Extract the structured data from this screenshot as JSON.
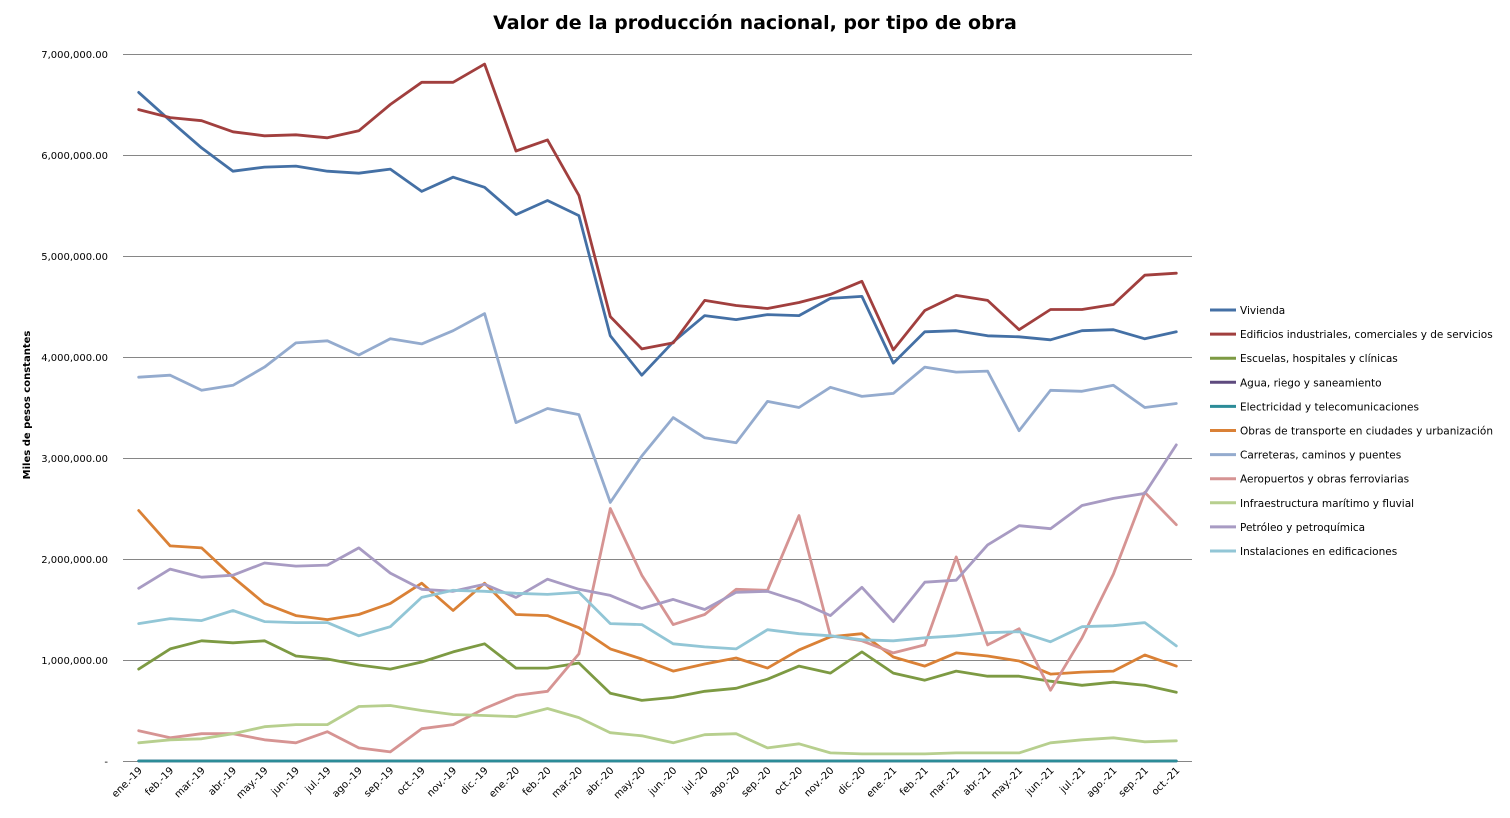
{
  "chart_data": {
    "type": "line",
    "title": "Valor de la producción nacional, por tipo de obra",
    "xlabel": "",
    "ylabel": "Miles de pesos constantes",
    "ylim": [
      0,
      7000000
    ],
    "yticks": [
      0,
      1000000,
      2000000,
      3000000,
      4000000,
      5000000,
      6000000,
      7000000
    ],
    "ytick_labels": [
      "-",
      "1,000,000.00",
      "2,000,000.00",
      "3,000,000.00",
      "4,000,000.00",
      "5,000,000.00",
      "6,000,000.00",
      "7,000,000.00"
    ],
    "grid": true,
    "legend_position": "right",
    "categories": [
      "ene.-19",
      "feb.-19",
      "mar.-19",
      "abr.-19",
      "may.-19",
      "jun.-19",
      "jul.-19",
      "ago.-19",
      "sep.-19",
      "oct.-19",
      "nov.-19",
      "dic.-19",
      "ene.-20",
      "feb.-20",
      "mar.-20",
      "abr.-20",
      "may.-20",
      "jun.-20",
      "jul.-20",
      "ago.-20",
      "sep.-20",
      "oct.-20",
      "nov.-20",
      "dic.-20",
      "ene.-21",
      "feb.-21",
      "mar.-21",
      "abr.-21",
      "may.-21",
      "jun.-21",
      "jul.-21",
      "ago.-21",
      "sep.-21",
      "oct.-21"
    ],
    "series": [
      {
        "name": "Vivienda",
        "color": "#4470A5",
        "values": [
          6620000,
          6340000,
          6070000,
          5840000,
          5880000,
          5890000,
          5840000,
          5820000,
          5860000,
          5640000,
          5780000,
          5680000,
          5410000,
          5550000,
          5400000,
          4210000,
          3820000,
          4150000,
          4410000,
          4370000,
          4420000,
          4410000,
          4580000,
          4600000,
          3940000,
          4250000,
          4260000,
          4210000,
          4200000,
          4170000,
          4260000,
          4270000,
          4180000,
          4250000
        ]
      },
      {
        "name": "Edificios industriales, comerciales y de servicios",
        "color": "#A13F3E",
        "values": [
          6450000,
          6370000,
          6340000,
          6230000,
          6190000,
          6200000,
          6170000,
          6240000,
          6500000,
          6720000,
          6720000,
          6900000,
          6040000,
          6150000,
          5600000,
          4400000,
          4080000,
          4140000,
          4560000,
          4510000,
          4480000,
          4540000,
          4620000,
          4750000,
          4070000,
          4460000,
          4610000,
          4560000,
          4270000,
          4470000,
          4470000,
          4520000,
          4810000,
          4830000
        ]
      },
      {
        "name": "Escuelas, hospitales y clínicas",
        "color": "#7D9A43",
        "values": [
          910000,
          1110000,
          1190000,
          1170000,
          1190000,
          1040000,
          1010000,
          950000,
          910000,
          980000,
          1080000,
          1160000,
          920000,
          920000,
          970000,
          670000,
          600000,
          630000,
          690000,
          720000,
          810000,
          940000,
          870000,
          1080000,
          870000,
          800000,
          890000,
          840000,
          840000,
          790000,
          750000,
          780000,
          750000,
          680000
        ]
      },
      {
        "name": "Agua, riego y saneamiento",
        "color": "#5E4A7E",
        "values": [
          0,
          0,
          0,
          0,
          0,
          0,
          0,
          0,
          0,
          0,
          0,
          0,
          0,
          0,
          0,
          0,
          0,
          0,
          0,
          0,
          0,
          0,
          0,
          0,
          0,
          0,
          0,
          0,
          0,
          0,
          0,
          0,
          0,
          0
        ]
      },
      {
        "name": "Electricidad y telecomunicaciones",
        "color": "#2C8C98",
        "values": [
          0,
          0,
          0,
          0,
          0,
          0,
          0,
          0,
          0,
          0,
          0,
          0,
          0,
          0,
          0,
          0,
          0,
          0,
          0,
          0,
          0,
          0,
          0,
          0,
          0,
          0,
          0,
          0,
          0,
          0,
          0,
          0,
          0,
          0
        ]
      },
      {
        "name": "Obras de transporte en ciudades y urbanización",
        "color": "#DA8136",
        "values": [
          2480000,
          2130000,
          2110000,
          1820000,
          1560000,
          1440000,
          1400000,
          1450000,
          1560000,
          1760000,
          1490000,
          1760000,
          1450000,
          1440000,
          1320000,
          1110000,
          1010000,
          890000,
          960000,
          1020000,
          920000,
          1100000,
          1230000,
          1260000,
          1030000,
          940000,
          1070000,
          1040000,
          990000,
          860000,
          880000,
          890000,
          1050000,
          940000
        ]
      },
      {
        "name": "Carreteras, caminos y puentes",
        "color": "#94ABCE",
        "values": [
          3800000,
          3820000,
          3670000,
          3720000,
          3900000,
          4140000,
          4160000,
          4020000,
          4180000,
          4130000,
          4260000,
          4430000,
          3350000,
          3490000,
          3430000,
          2560000,
          3020000,
          3400000,
          3200000,
          3150000,
          3560000,
          3500000,
          3700000,
          3610000,
          3640000,
          3900000,
          3850000,
          3860000,
          3270000,
          3670000,
          3660000,
          3720000,
          3500000,
          3540000
        ]
      },
      {
        "name": "Aeropuertos y obras ferroviarias",
        "color": "#D69493",
        "values": [
          300000,
          230000,
          270000,
          270000,
          210000,
          180000,
          290000,
          130000,
          90000,
          320000,
          360000,
          520000,
          650000,
          690000,
          1060000,
          2500000,
          1840000,
          1350000,
          1450000,
          1700000,
          1690000,
          2430000,
          1240000,
          1190000,
          1070000,
          1150000,
          2020000,
          1150000,
          1310000,
          700000,
          1220000,
          1850000,
          2660000,
          2340000
        ]
      },
      {
        "name": "Infraestructura marítimo y fluvial",
        "color": "#B7CF8E",
        "values": [
          180000,
          210000,
          220000,
          270000,
          340000,
          360000,
          360000,
          540000,
          550000,
          500000,
          460000,
          450000,
          440000,
          520000,
          430000,
          280000,
          250000,
          180000,
          260000,
          270000,
          130000,
          170000,
          80000,
          70000,
          70000,
          70000,
          80000,
          80000,
          80000,
          180000,
          210000,
          230000,
          190000,
          200000
        ]
      },
      {
        "name": "Petróleo y petroquímica",
        "color": "#A89BC3",
        "values": [
          1710000,
          1900000,
          1820000,
          1840000,
          1960000,
          1930000,
          1940000,
          2110000,
          1860000,
          1700000,
          1680000,
          1750000,
          1620000,
          1800000,
          1700000,
          1640000,
          1510000,
          1600000,
          1500000,
          1670000,
          1680000,
          1580000,
          1440000,
          1720000,
          1380000,
          1770000,
          1790000,
          2140000,
          2330000,
          2300000,
          2530000,
          2600000,
          2650000,
          3130000
        ]
      },
      {
        "name": "Instalaciones en edificaciones",
        "color": "#92C6D6",
        "values": [
          1360000,
          1410000,
          1390000,
          1490000,
          1380000,
          1370000,
          1370000,
          1240000,
          1330000,
          1620000,
          1690000,
          1680000,
          1660000,
          1650000,
          1670000,
          1360000,
          1350000,
          1160000,
          1130000,
          1110000,
          1300000,
          1260000,
          1240000,
          1200000,
          1190000,
          1220000,
          1240000,
          1270000,
          1280000,
          1180000,
          1330000,
          1340000,
          1370000,
          1140000
        ]
      }
    ]
  }
}
